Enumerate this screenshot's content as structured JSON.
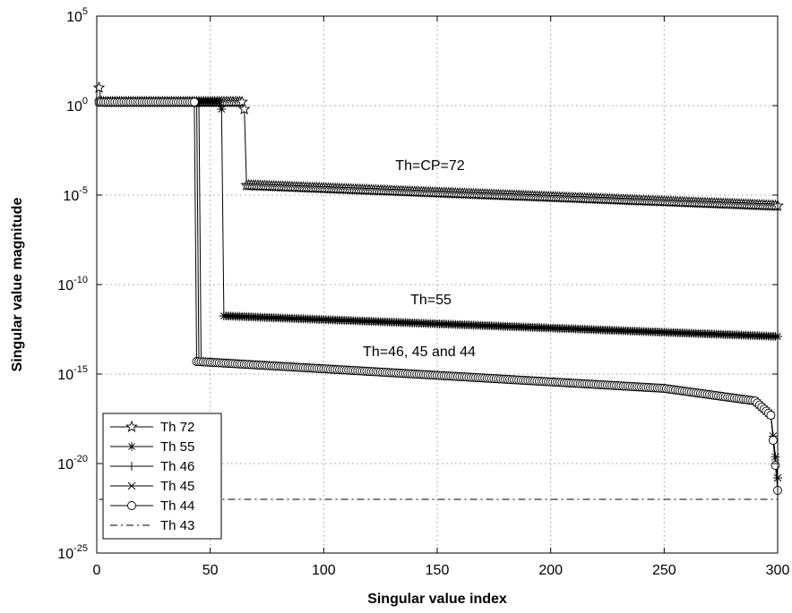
{
  "chart_data": {
    "type": "line",
    "title": "",
    "xlabel": "Singular value index",
    "ylabel": "Singular value magnitude",
    "xlim": [
      0,
      300
    ],
    "ylim_log10": [
      -25,
      5
    ],
    "yscale": "log",
    "grid": true,
    "legend_position": "bottom-left",
    "x_ticks": [
      0,
      50,
      100,
      150,
      200,
      250,
      300
    ],
    "y_ticks": [
      {
        "base": "10",
        "exp": "5",
        "log10": 5
      },
      {
        "base": "10",
        "exp": "0",
        "log10": 0
      },
      {
        "base": "10",
        "exp": "-5",
        "log10": -5
      },
      {
        "base": "10",
        "exp": "-10",
        "log10": -10
      },
      {
        "base": "10",
        "exp": "-15",
        "log10": -15
      },
      {
        "base": "10",
        "exp": "-20",
        "log10": -20
      },
      {
        "base": "10",
        "exp": "-25",
        "log10": -25
      }
    ],
    "annotations": [
      {
        "text": "Th=CP=72",
        "x": 150,
        "log10_y": -3.3
      },
      {
        "text": "Th=55",
        "x": 150,
        "log10_y": -10.8
      },
      {
        "text": "Th=46, 45 and 44",
        "x": 150,
        "log10_y": -13.7
      }
    ],
    "series": [
      {
        "name": "Th 72",
        "marker": "star",
        "linestyle": "solid",
        "points_log10": [
          [
            1,
            1.0
          ],
          [
            2,
            0.2
          ],
          [
            64,
            0.2
          ],
          [
            65,
            -0.2
          ],
          [
            66,
            -4.45
          ],
          [
            300,
            -5.6
          ]
        ]
      },
      {
        "name": "Th 55",
        "marker": "asterisk",
        "linestyle": "solid",
        "points_log10": [
          [
            1,
            0.3
          ],
          [
            2,
            0.2
          ],
          [
            54,
            0.2
          ],
          [
            55,
            -0.2
          ],
          [
            56,
            -11.75
          ],
          [
            300,
            -12.9
          ]
        ]
      },
      {
        "name": "Th 46",
        "marker": "plus",
        "linestyle": "solid",
        "points_log10": [
          [
            1,
            0.2
          ],
          [
            45,
            0.2
          ],
          [
            46,
            -14.3
          ],
          [
            250,
            -15.8
          ],
          [
            290,
            -16.5
          ],
          [
            297,
            -17.3
          ],
          [
            300,
            -20.8
          ]
        ]
      },
      {
        "name": "Th 45",
        "marker": "x",
        "linestyle": "solid",
        "points_log10": [
          [
            1,
            0.2
          ],
          [
            44,
            0.2
          ],
          [
            45,
            -14.3
          ],
          [
            250,
            -15.8
          ],
          [
            290,
            -16.5
          ],
          [
            297,
            -17.3
          ],
          [
            300,
            -20.8
          ]
        ]
      },
      {
        "name": "Th 44",
        "marker": "circle",
        "linestyle": "solid",
        "points_log10": [
          [
            1,
            0.2
          ],
          [
            43,
            0.2
          ],
          [
            44,
            -14.3
          ],
          [
            250,
            -15.8
          ],
          [
            290,
            -16.5
          ],
          [
            297,
            -17.3
          ],
          [
            300,
            -21.5
          ]
        ]
      },
      {
        "name": "Th 43",
        "marker": "none",
        "linestyle": "dashdot",
        "points_log10": [
          [
            1,
            -22.0
          ],
          [
            300,
            -22.0
          ]
        ]
      }
    ]
  }
}
